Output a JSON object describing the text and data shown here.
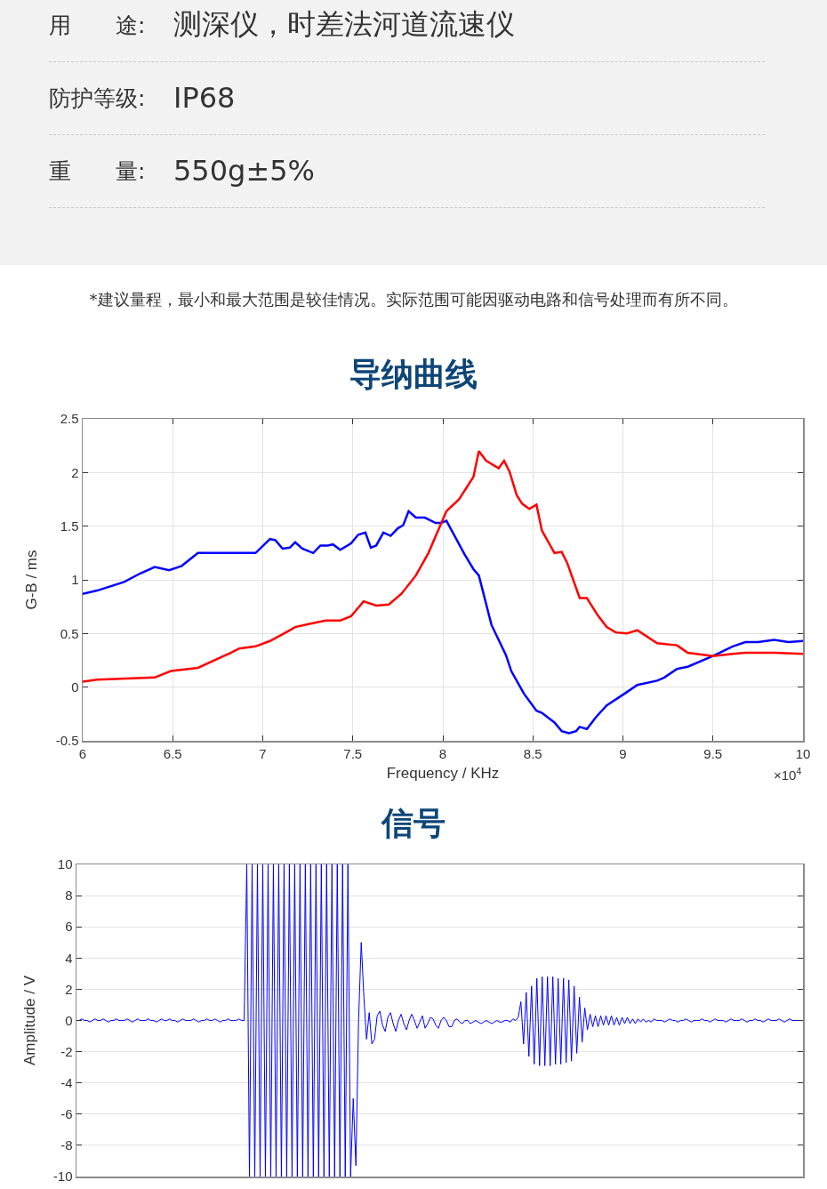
{
  "chart_data": [
    {
      "type": "other",
      "annotations": [
        "用　　途:",
        "测深仪，时差法河道流速仪",
        "防护等级:",
        "IP68",
        "重　　量:",
        "550g±5%",
        "*建议量程，最小和最大范围是较佳情况。实际范围可能因驱动电路和信号处理而有所不同。"
      ]
    },
    {
      "type": "line",
      "title": "导纳曲线",
      "xlabel": "Frequency / KHz",
      "ylabel": "G-B / ms",
      "annotations": [
        "×10$^{4}$"
      ],
      "xlim": [
        6,
        10
      ],
      "xticks": [
        6,
        6.5,
        7,
        7.5,
        8,
        8.5,
        9,
        9.5,
        10
      ],
      "ylim": [
        -0.5,
        2.5
      ],
      "yticks": [
        -0.5,
        0,
        0.5,
        1,
        1.5,
        2,
        2.5
      ],
      "grid": true,
      "series": [
        {
          "color": "#0000ff",
          "x": [
            6,
            6.08,
            6.23,
            6.32,
            6.4,
            6.48,
            6.55,
            6.64,
            6.96,
            7.04,
            7.07,
            7.11,
            7.15,
            7.18,
            7.22,
            7.28,
            7.32,
            7.36,
            7.39,
            7.43,
            7.49,
            7.53,
            7.57,
            7.6,
            7.63,
            7.67,
            7.71,
            7.75,
            7.78,
            7.81,
            7.85,
            7.9,
            7.96,
            7.99,
            8.02,
            8.12,
            8.17,
            8.2,
            8.27,
            8.35,
            8.38,
            8.45,
            8.52,
            8.55,
            8.62,
            8.66,
            8.7,
            8.74,
            8.76,
            8.8,
            8.85,
            8.91,
            9.01,
            9.08,
            9.19,
            9.23,
            9.3,
            9.36,
            9.5,
            9.61,
            9.68,
            9.75,
            9.84,
            9.92,
            10
          ],
          "values": [
            0.87,
            0.9,
            0.98,
            1.06,
            1.12,
            1.09,
            1.13,
            1.25,
            1.25,
            1.38,
            1.37,
            1.29,
            1.3,
            1.35,
            1.29,
            1.25,
            1.32,
            1.32,
            1.33,
            1.28,
            1.34,
            1.42,
            1.44,
            1.3,
            1.32,
            1.44,
            1.41,
            1.48,
            1.51,
            1.64,
            1.58,
            1.58,
            1.53,
            1.53,
            1.55,
            1.24,
            1.1,
            1.04,
            0.58,
            0.3,
            0.15,
            -0.06,
            -0.22,
            -0.24,
            -0.33,
            -0.41,
            -0.43,
            -0.41,
            -0.37,
            -0.39,
            -0.28,
            -0.17,
            -0.06,
            0.02,
            0.06,
            0.09,
            0.17,
            0.19,
            0.29,
            0.38,
            0.42,
            0.42,
            0.44,
            0.42,
            0.43
          ]
        },
        {
          "color": "#ff0000",
          "x": [
            6,
            6.08,
            6.4,
            6.49,
            6.64,
            6.81,
            6.87,
            6.96,
            7.04,
            7.14,
            7.18,
            7.26,
            7.35,
            7.43,
            7.49,
            7.56,
            7.63,
            7.7,
            7.77,
            7.85,
            7.92,
            8.02,
            8.09,
            8.17,
            8.2,
            8.24,
            8.31,
            8.34,
            8.37,
            8.41,
            8.44,
            8.48,
            8.52,
            8.55,
            8.62,
            8.66,
            8.69,
            8.76,
            8.8,
            8.86,
            8.91,
            8.96,
            9.02,
            9.08,
            9.19,
            9.3,
            9.36,
            9.5,
            9.61,
            9.68,
            9.84,
            10
          ],
          "values": [
            0.05,
            0.07,
            0.09,
            0.15,
            0.18,
            0.31,
            0.36,
            0.38,
            0.43,
            0.52,
            0.56,
            0.59,
            0.62,
            0.62,
            0.66,
            0.8,
            0.76,
            0.77,
            0.87,
            1.04,
            1.25,
            1.64,
            1.75,
            1.96,
            2.2,
            2.11,
            2.04,
            2.11,
            2.01,
            1.79,
            1.71,
            1.66,
            1.7,
            1.46,
            1.25,
            1.26,
            1.16,
            0.83,
            0.83,
            0.67,
            0.56,
            0.51,
            0.5,
            0.53,
            0.41,
            0.39,
            0.32,
            0.29,
            0.31,
            0.32,
            0.32,
            0.31
          ]
        }
      ]
    },
    {
      "type": "line",
      "title": "信号",
      "ylabel": "Amplitude / V",
      "ylim": [
        -10,
        10
      ],
      "yticks": [
        -10,
        -8,
        -6,
        -4,
        -2,
        0,
        2,
        4,
        6,
        8,
        10
      ],
      "grid": "y",
      "tick_labels": "y",
      "categories": [
        null,
        null,
        null,
        null,
        null,
        null,
        null,
        null,
        null,
        null,
        null,
        null,
        null,
        null,
        null,
        null,
        null,
        null,
        null,
        null,
        null,
        null,
        null,
        null,
        null,
        null,
        null,
        null,
        null,
        null,
        null,
        null,
        null,
        null,
        null,
        null,
        null,
        null,
        null,
        null,
        null,
        null,
        null,
        null,
        null,
        null,
        null,
        null,
        null,
        null,
        null,
        null,
        null,
        null,
        null,
        null,
        null,
        null,
        null,
        null,
        null,
        null,
        null,
        null,
        null,
        null,
        null,
        null,
        null,
        null,
        null,
        null,
        null,
        null,
        null,
        null,
        null,
        null,
        null,
        null,
        null,
        null,
        null,
        null,
        null,
        null,
        null,
        null,
        null,
        null,
        null,
        null,
        null,
        null,
        null,
        null,
        null,
        null,
        null,
        null,
        null,
        null,
        null,
        null,
        null,
        null,
        null,
        null,
        null,
        null,
        null,
        null,
        null,
        null,
        null,
        null,
        null,
        null,
        null,
        null,
        null,
        null,
        null,
        null,
        null,
        null,
        null,
        null,
        null,
        null,
        null,
        null,
        null,
        null,
        null,
        null,
        null,
        null,
        null,
        null,
        null,
        null,
        null,
        null,
        null,
        null,
        null,
        null,
        null,
        null,
        null,
        null,
        null,
        null,
        null,
        null,
        null,
        null,
        null,
        null,
        null,
        null,
        null,
        null,
        null,
        null,
        null,
        null,
        null,
        null,
        null,
        null,
        null,
        null,
        null,
        null,
        null,
        null,
        null,
        null,
        null,
        null,
        null,
        null,
        null,
        null,
        null,
        null,
        null,
        null,
        null,
        null,
        null,
        null,
        null,
        null,
        null,
        null,
        null,
        null,
        null,
        null,
        null,
        null,
        null,
        null,
        null,
        null,
        null,
        null,
        null,
        null,
        null,
        null,
        null,
        null,
        null,
        null,
        null,
        null,
        null,
        null,
        null,
        null,
        null,
        null,
        null,
        null,
        null,
        null,
        null,
        null,
        null,
        null,
        null,
        null,
        null,
        null,
        null,
        null,
        null,
        null,
        null,
        null,
        null,
        null,
        null,
        null,
        null,
        null,
        null,
        null,
        null,
        null,
        null,
        null,
        null,
        null,
        null,
        null,
        null,
        null,
        null,
        null,
        null,
        null,
        null,
        null,
        null,
        null,
        null
      ],
      "series": [
        {
          "color": "#0000ff",
          "values": [
            0,
            0.1,
            0,
            0,
            -0.1,
            0,
            0.1,
            0,
            0,
            0.1,
            0,
            -0.1,
            0,
            0,
            0.1,
            0,
            0,
            0,
            0.1,
            0,
            -0.1,
            0,
            0.1,
            0,
            0,
            0,
            0.1,
            0,
            0,
            -0.1,
            0,
            0.1,
            0,
            0,
            0.1,
            0,
            0,
            -0.1,
            0,
            0.1,
            0,
            0,
            0,
            0.1,
            0,
            -0.1,
            0,
            0,
            0.1,
            0,
            0,
            0.1,
            0,
            -0.1,
            0,
            0,
            0.1,
            0,
            0,
            0,
            0.1,
            0,
            0,
            10,
            -10,
            10,
            -10,
            10,
            -10,
            10,
            -10,
            10,
            -10,
            10,
            -10,
            10,
            -10,
            10,
            -10,
            10,
            -10,
            10,
            -10,
            10,
            -10,
            10,
            -10,
            10,
            -10,
            10,
            -10,
            10,
            -10,
            10,
            -10,
            10,
            -10,
            10,
            -10,
            10,
            -10,
            10,
            -10,
            -5,
            -9.3,
            0,
            5,
            1.5,
            -1.2,
            0.5,
            -1.5,
            -1.2,
            0.3,
            0.6,
            -0.3,
            -0.7,
            0.2,
            0.5,
            -0.2,
            -0.7,
            0,
            0.4,
            -0.2,
            -0.6,
            0,
            0.4,
            0,
            -0.5,
            -0.1,
            0.3,
            -0.5,
            -0.2,
            0.2,
            0.1,
            -0.3,
            -0.5,
            0,
            0.2,
            0,
            -0.4,
            -0.4,
            0,
            0.1,
            -0.1,
            -0.2,
            0,
            0,
            -0.2,
            -0.1,
            0,
            -0.1,
            -0.2,
            -0.1,
            0,
            -0.1,
            -0.2,
            -0.1,
            0,
            -0.1,
            -0.1,
            0,
            0,
            -0.1,
            0.1,
            0,
            0.2,
            1.2,
            -1.5,
            1.8,
            -2.3,
            2.2,
            -2.8,
            2.7,
            -2.9,
            2.8,
            -2.9,
            2.8,
            -2.9,
            2.8,
            -2.8,
            2.7,
            -2.8,
            2.7,
            -2.7,
            2.6,
            -2.6,
            2.2,
            -2.1,
            1.5,
            -1.4,
            0.8,
            -0.6,
            0.4,
            -0.4,
            0.3,
            -0.4,
            0.3,
            -0.3,
            0.3,
            -0.3,
            0.3,
            -0.3,
            0.2,
            -0.3,
            0.2,
            -0.2,
            0.2,
            -0.2,
            0.1,
            -0.2,
            0.1,
            -0.1,
            0.1,
            -0.1,
            0,
            -0.1,
            0.1,
            0,
            0,
            0,
            -0.1,
            0,
            0.1,
            0,
            0,
            -0.1,
            0,
            0,
            0.1,
            0,
            -0.1,
            0,
            0,
            0,
            0.1,
            0,
            0,
            -0.1,
            0,
            0.1,
            0,
            0,
            0,
            -0.1,
            0,
            0.1,
            0,
            0,
            0,
            0.1,
            0,
            -0.1,
            0,
            0,
            0.1,
            0,
            0,
            -0.1,
            0,
            0.1,
            0,
            0,
            0,
            0.1,
            0,
            -0.1,
            0,
            0.1,
            0,
            0,
            0
          ]
        }
      ]
    }
  ]
}
